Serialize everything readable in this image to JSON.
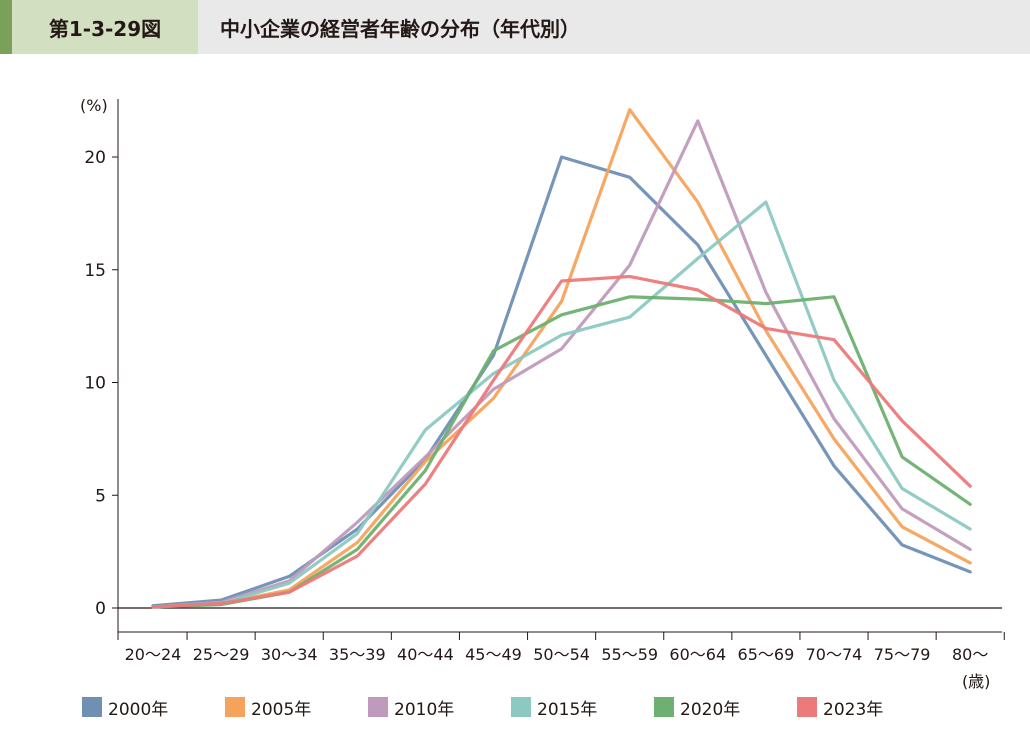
{
  "header": {
    "figure_label": "第1-3-29図",
    "title": "中小企業の経営者年齢の分布（年代別）"
  },
  "chart_data": {
    "type": "line",
    "y_unit_label": "(%)",
    "x_unit_label": "(歳)",
    "categories": [
      "20～24",
      "25～29",
      "30～34",
      "35～39",
      "40～44",
      "45～49",
      "50～54",
      "55～59",
      "60～64",
      "65～69",
      "70～74",
      "75～79",
      "80～"
    ],
    "ylim": [
      0,
      23
    ],
    "yticks": [
      0,
      5,
      10,
      15,
      20
    ],
    "grid": false,
    "legend_position": "bottom",
    "series": [
      {
        "name": "2000年",
        "color": "#6f8fb4",
        "values": [
          0.1,
          0.35,
          1.4,
          3.5,
          6.6,
          11.2,
          20.0,
          19.1,
          16.1,
          11.2,
          6.3,
          2.8,
          1.6
        ]
      },
      {
        "name": "2005年",
        "color": "#f5a35c",
        "values": [
          0.05,
          0.2,
          0.8,
          2.9,
          6.5,
          9.3,
          13.6,
          22.1,
          18.0,
          12.3,
          7.5,
          3.6,
          2.0
        ]
      },
      {
        "name": "2010年",
        "color": "#c09abd",
        "values": [
          0.05,
          0.25,
          1.2,
          3.8,
          6.7,
          9.7,
          11.5,
          15.2,
          21.6,
          14.0,
          8.4,
          4.4,
          2.6
        ]
      },
      {
        "name": "2015年",
        "color": "#8cc9c1",
        "values": [
          0.05,
          0.2,
          1.1,
          3.3,
          7.9,
          10.4,
          12.1,
          12.9,
          15.5,
          18.0,
          10.1,
          5.3,
          3.5
        ]
      },
      {
        "name": "2020年",
        "color": "#6db06f",
        "values": [
          0.05,
          0.15,
          0.7,
          2.6,
          6.1,
          11.4,
          13.0,
          13.8,
          13.7,
          13.5,
          13.8,
          6.7,
          4.6
        ]
      },
      {
        "name": "2023年",
        "color": "#ec7a7a",
        "values": [
          0.05,
          0.2,
          0.7,
          2.3,
          5.5,
          10.1,
          14.5,
          14.7,
          14.1,
          12.4,
          11.9,
          8.3,
          5.4
        ]
      }
    ]
  }
}
